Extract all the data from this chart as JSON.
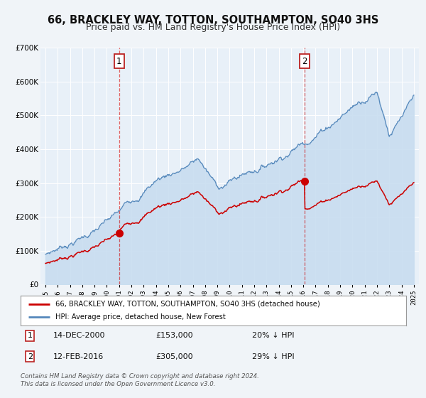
{
  "title": "66, BRACKLEY WAY, TOTTON, SOUTHAMPTON, SO40 3HS",
  "subtitle": "Price paid vs. HM Land Registry's House Price Index (HPI)",
  "legend_label_red": "66, BRACKLEY WAY, TOTTON, SOUTHAMPTON, SO40 3HS (detached house)",
  "legend_label_blue": "HPI: Average price, detached house, New Forest",
  "footnote1": "Contains HM Land Registry data © Crown copyright and database right 2024.",
  "footnote2": "This data is licensed under the Open Government Licence v3.0.",
  "marker1_date": "14-DEC-2000",
  "marker1_price": "£153,000",
  "marker1_hpi": "20% ↓ HPI",
  "marker1_year": 2001.0,
  "marker1_value": 153000,
  "marker2_date": "12-FEB-2016",
  "marker2_price": "£305,000",
  "marker2_hpi": "29% ↓ HPI",
  "marker2_year": 2016.1,
  "marker2_value": 305000,
  "xlim_left": 1994.6,
  "xlim_right": 2025.4,
  "ylim_bottom": 0,
  "ylim_top": 700000,
  "bg_color": "#f0f4f8",
  "plot_bg_color": "#e8f0f8",
  "fill_color": "#c8ddf0",
  "red_color": "#cc0000",
  "blue_color": "#5588bb",
  "grid_color": "#ffffff",
  "title_fontsize": 10.5,
  "subtitle_fontsize": 9
}
